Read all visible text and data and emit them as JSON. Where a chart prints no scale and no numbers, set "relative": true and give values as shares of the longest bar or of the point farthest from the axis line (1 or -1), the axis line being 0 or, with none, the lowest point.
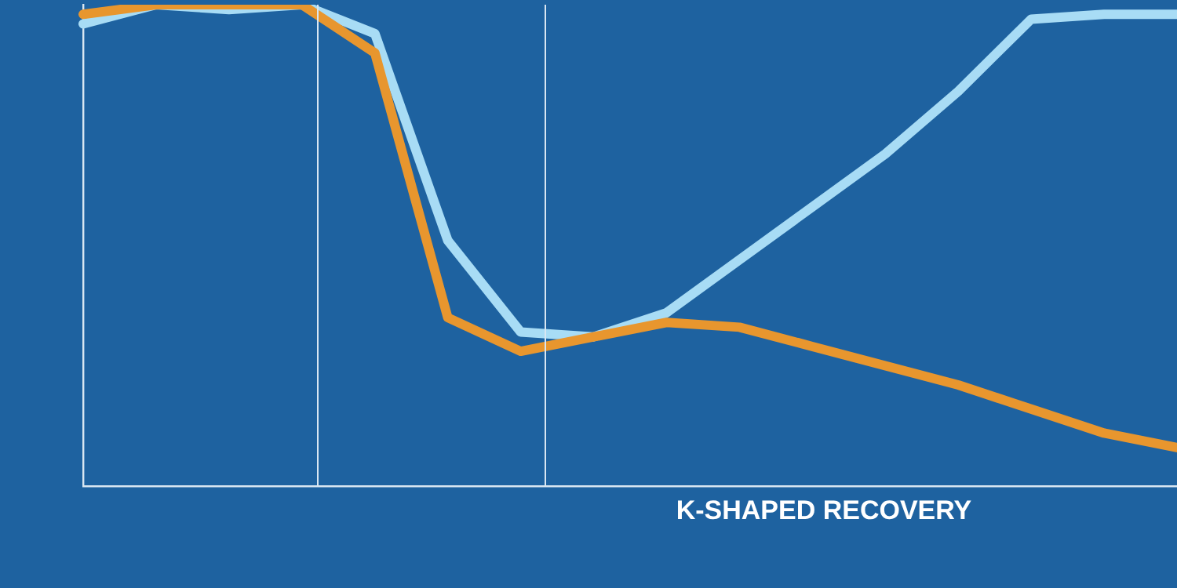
{
  "chart_data": {
    "type": "line",
    "relative": true,
    "categories": [
      null,
      null,
      null,
      null,
      null,
      null,
      null,
      null,
      null,
      null,
      null,
      null,
      null,
      null,
      null,
      null
    ],
    "legend": false,
    "marker": "none",
    "line_style": "solid",
    "series": [
      {
        "color": "#e8962e",
        "values": [
          0.98,
          1,
          1,
          1,
          0.9,
          0.35,
          0.28,
          0.31,
          0.34,
          0.33,
          0.29,
          0.25,
          0.21,
          0.16,
          0.11,
          0.08
        ]
      },
      {
        "color": "#a8dcf5",
        "values": [
          0.96,
          1,
          0.99,
          1,
          0.94,
          0.51,
          0.32,
          0.31,
          0.36,
          0.47,
          0.58,
          0.69,
          0.82,
          0.97,
          0.98,
          0.98
        ]
      }
    ],
    "annotations": [
      "K-SHAPED RECOVERY"
    ]
  }
}
